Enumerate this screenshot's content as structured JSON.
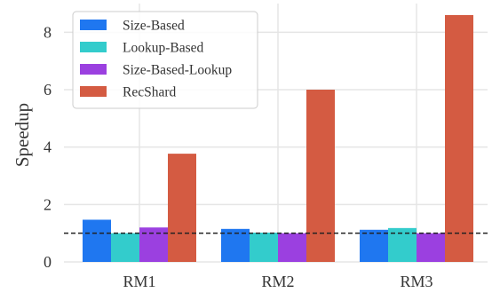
{
  "chart_data": {
    "type": "bar",
    "categories": [
      "RM1",
      "RM2",
      "RM3"
    ],
    "series": [
      {
        "name": "Size-Based",
        "color": "#1f77f0",
        "values": [
          1.47,
          1.15,
          1.12
        ]
      },
      {
        "name": "Lookup-Based",
        "color": "#33cccc",
        "values": [
          1.0,
          1.02,
          1.18
        ]
      },
      {
        "name": "Size-Based-Lookup",
        "color": "#9b40e0",
        "values": [
          1.2,
          1.0,
          1.0
        ]
      },
      {
        "name": "RecShard",
        "color": "#d45b42",
        "values": [
          3.77,
          6.0,
          8.6
        ]
      }
    ],
    "ylabel": "Speedup",
    "xlabel": "",
    "ylim": [
      0,
      9
    ],
    "yticks": [
      0,
      2,
      4,
      6,
      8
    ],
    "reference_line": {
      "y": 1,
      "style": "dashed",
      "color": "#222222"
    },
    "grid": true,
    "legend": "top-left",
    "background": "#ffffff",
    "grid_color": "#e5e5e5"
  }
}
